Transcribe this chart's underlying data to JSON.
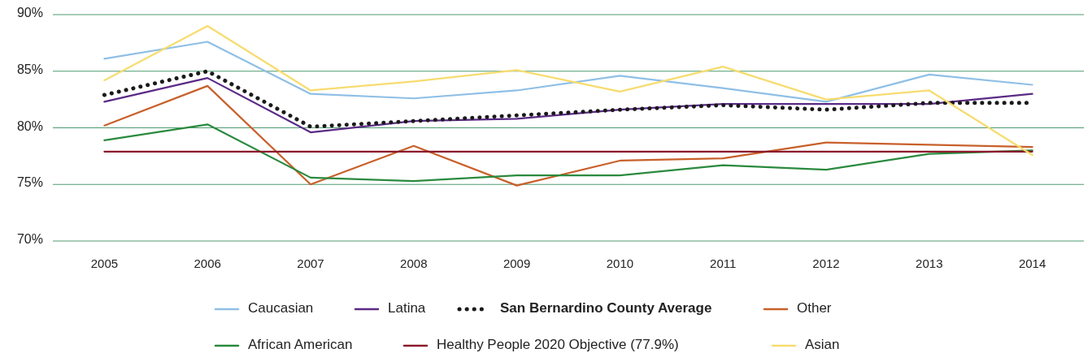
{
  "chart_data": {
    "type": "line",
    "categories": [
      "2005",
      "2006",
      "2007",
      "2008",
      "2009",
      "2010",
      "2011",
      "2012",
      "2013",
      "2014"
    ],
    "ylim": [
      70,
      90
    ],
    "yticks": [
      {
        "value": 70,
        "label": "70%"
      },
      {
        "value": 75,
        "label": "75%"
      },
      {
        "value": 80,
        "label": "80%"
      },
      {
        "value": 85,
        "label": "85%"
      },
      {
        "value": 90,
        "label": "90%"
      }
    ],
    "grid": "y",
    "legend": "bottom",
    "marker": "none",
    "series": [
      {
        "name": "Caucasian",
        "color": "#8fbfe6",
        "line_style": "solid",
        "values": [
          86.1,
          87.6,
          83.0,
          82.6,
          83.3,
          84.6,
          83.5,
          82.3,
          84.7,
          83.8
        ]
      },
      {
        "name": "Latina",
        "color": "#5b2a86",
        "line_style": "solid",
        "values": [
          82.3,
          84.4,
          79.6,
          80.6,
          80.8,
          81.6,
          82.1,
          82.1,
          82.1,
          83.0
        ]
      },
      {
        "name": "San Bernardino County Average",
        "color": "#1a1a1a",
        "line_style": "dotted",
        "values": [
          82.9,
          85.0,
          80.1,
          80.6,
          81.1,
          81.6,
          82.0,
          81.6,
          82.2,
          82.2
        ]
      },
      {
        "name": "Other",
        "color": "#c8602a",
        "line_style": "solid",
        "values": [
          80.2,
          83.7,
          75.0,
          78.4,
          74.9,
          77.1,
          77.3,
          78.7,
          78.5,
          78.3
        ]
      },
      {
        "name": "African American",
        "color": "#2a8a3e",
        "line_style": "solid",
        "values": [
          78.9,
          80.3,
          75.6,
          75.3,
          75.8,
          75.8,
          76.7,
          76.3,
          77.7,
          78.0
        ]
      },
      {
        "name": "Healthy People 2020 Objective (77.9%)",
        "color": "#8b1a2a",
        "line_style": "solid",
        "values": [
          77.9,
          77.9,
          77.9,
          77.9,
          77.9,
          77.9,
          77.9,
          77.9,
          77.9,
          77.9
        ]
      },
      {
        "name": "Asian",
        "color": "#f7dc6f",
        "line_style": "solid",
        "values": [
          84.2,
          89.0,
          83.3,
          84.1,
          85.1,
          83.2,
          85.4,
          82.5,
          83.3,
          77.6
        ]
      }
    ]
  }
}
